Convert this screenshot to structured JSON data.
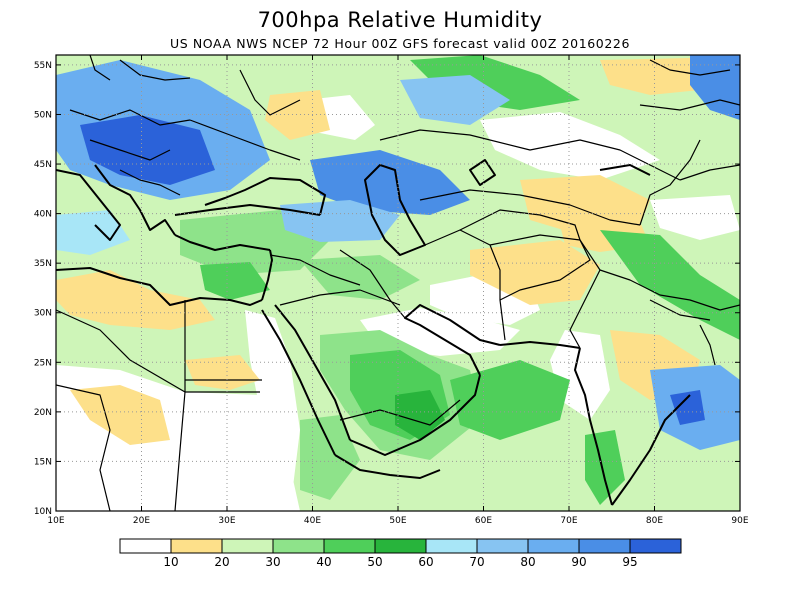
{
  "title": "700hpa Relative Humidity",
  "subtitle": "US NOAA NWS NCEP 72 Hour 00Z GFS forecast valid 00Z 20160226",
  "map": {
    "lon_range": [
      10,
      90
    ],
    "lat_range": [
      10,
      56
    ],
    "x_ticks": [
      "10E",
      "20E",
      "30E",
      "40E",
      "50E",
      "60E",
      "70E",
      "80E",
      "90E"
    ],
    "y_ticks": [
      "10N",
      "15N",
      "20N",
      "25N",
      "30N",
      "35N",
      "40N",
      "45N",
      "50N",
      "55N"
    ],
    "x_tick_values": [
      10,
      20,
      30,
      40,
      50,
      60,
      70,
      80,
      90
    ],
    "y_tick_values": [
      10,
      15,
      20,
      25,
      30,
      35,
      40,
      45,
      50,
      55
    ]
  },
  "legend": {
    "labels": [
      "10",
      "20",
      "30",
      "40",
      "50",
      "60",
      "70",
      "80",
      "90",
      "95"
    ],
    "colors": [
      "#ffffff",
      "#fde08a",
      "#cef5b8",
      "#8ee38a",
      "#4fcf5a",
      "#28b43c",
      "#a8e6f7",
      "#87c4f2",
      "#6aaef0",
      "#4a8ee6",
      "#2b62d9"
    ]
  },
  "palette": {
    "white": "#ffffff",
    "yellow": "#fde08a",
    "pale_green": "#cef5b8",
    "light_green": "#8ee38a",
    "green": "#4fcf5a",
    "dark_green": "#28b43c",
    "pale_blue": "#a8e6f7",
    "light_blue": "#87c4f2",
    "blue": "#6aaef0",
    "mid_blue": "#4a8ee6",
    "dark_blue": "#2b62d9"
  }
}
